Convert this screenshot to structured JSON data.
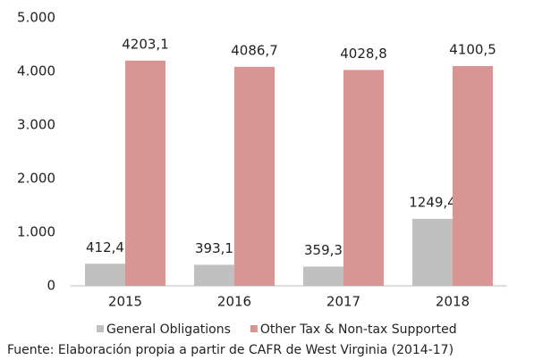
{
  "chart_data": {
    "type": "bar",
    "categories": [
      "2015",
      "2016",
      "2017",
      "2018"
    ],
    "series": [
      {
        "name": "General Obligations",
        "color": "#c0c0c0",
        "values": [
          412.4,
          393.1,
          359.3,
          1249.4
        ],
        "value_labels": [
          "412,4",
          "393,1",
          "359,3",
          "1249,4"
        ]
      },
      {
        "name": "Other Tax & Non-tax Supported",
        "color": "#d99594",
        "values": [
          4203.1,
          4086.7,
          4028.8,
          4100.5
        ],
        "value_labels": [
          "4203,1",
          "4086,7",
          "4028,8",
          "4100,5"
        ]
      }
    ],
    "ylim": [
      0,
      5000
    ],
    "yticks": [
      0,
      {
        "value": 1000,
        "label": "1.000"
      },
      {
        "value": 2000,
        "label": "2.000"
      },
      {
        "value": 3000,
        "label": "3.000"
      },
      {
        "value": 4000,
        "label": "4.000"
      },
      {
        "value": 5000,
        "label": "5.000"
      }
    ],
    "grid": false,
    "legend": "bottom",
    "source": "Fuente: Elaboración propia a partir de CAFR de West Virginia (2014-17)"
  }
}
